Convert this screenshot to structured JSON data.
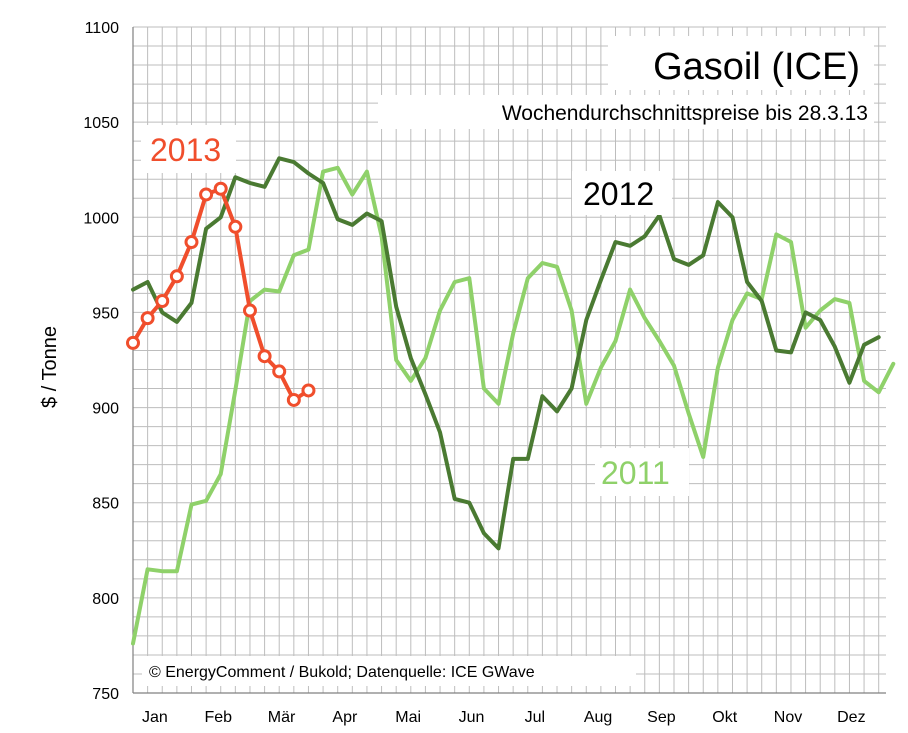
{
  "chart_data": {
    "type": "line",
    "title": "Gasoil (ICE)",
    "subtitle": "Wochendurchschnittspreise bis 28.3.13",
    "ylabel": "$ / Tonne",
    "xlabel": "",
    "ylim": [
      750,
      1100
    ],
    "yticks": [
      750,
      800,
      850,
      900,
      950,
      1000,
      1050,
      1100
    ],
    "x_unit": "week of year",
    "xlim": [
      1,
      52.5
    ],
    "month_labels": [
      "Jan",
      "Feb",
      "Mär",
      "Apr",
      "Mai",
      "Jun",
      "Jul",
      "Aug",
      "Sep",
      "Okt",
      "Nov",
      "Dez"
    ],
    "grid": true,
    "source": "© EnergyComment / Bukold; Datenquelle: ICE GWave",
    "series": [
      {
        "name": "2011",
        "color": "#8fd16a",
        "marker": "none",
        "values": [
          776,
          815,
          814,
          814,
          849,
          851,
          865,
          909,
          956,
          962,
          961,
          980,
          983,
          1024,
          1026,
          1012,
          1024,
          990,
          925,
          914,
          926,
          951,
          966,
          968,
          910,
          902,
          939,
          968,
          976,
          974,
          951,
          902,
          921,
          935,
          962,
          947,
          935,
          922,
          897,
          874,
          921,
          946,
          960,
          957,
          991,
          987,
          942,
          951,
          957,
          955,
          914,
          908,
          923
        ]
      },
      {
        "name": "2012",
        "color": "#4a7a32",
        "marker": "none",
        "values": [
          962,
          966,
          950,
          945,
          955,
          994,
          1000,
          1021,
          1018,
          1016,
          1031,
          1029,
          1023,
          1018,
          999,
          996,
          1002,
          998,
          953,
          926,
          907,
          887,
          852,
          850,
          834,
          826,
          873,
          873,
          906,
          898,
          910,
          946,
          967,
          987,
          985,
          990,
          1001,
          978,
          975,
          980,
          1008,
          1000,
          966,
          956,
          930,
          929,
          950,
          946,
          932,
          913,
          933,
          937
        ]
      },
      {
        "name": "2013",
        "color": "#f04e2c",
        "marker": "circle",
        "values": [
          934,
          947,
          956,
          969,
          987,
          1012,
          1015,
          995,
          951,
          927,
          919,
          904,
          909
        ]
      }
    ],
    "series_labels": [
      "2013",
      "2012",
      "2011"
    ]
  }
}
